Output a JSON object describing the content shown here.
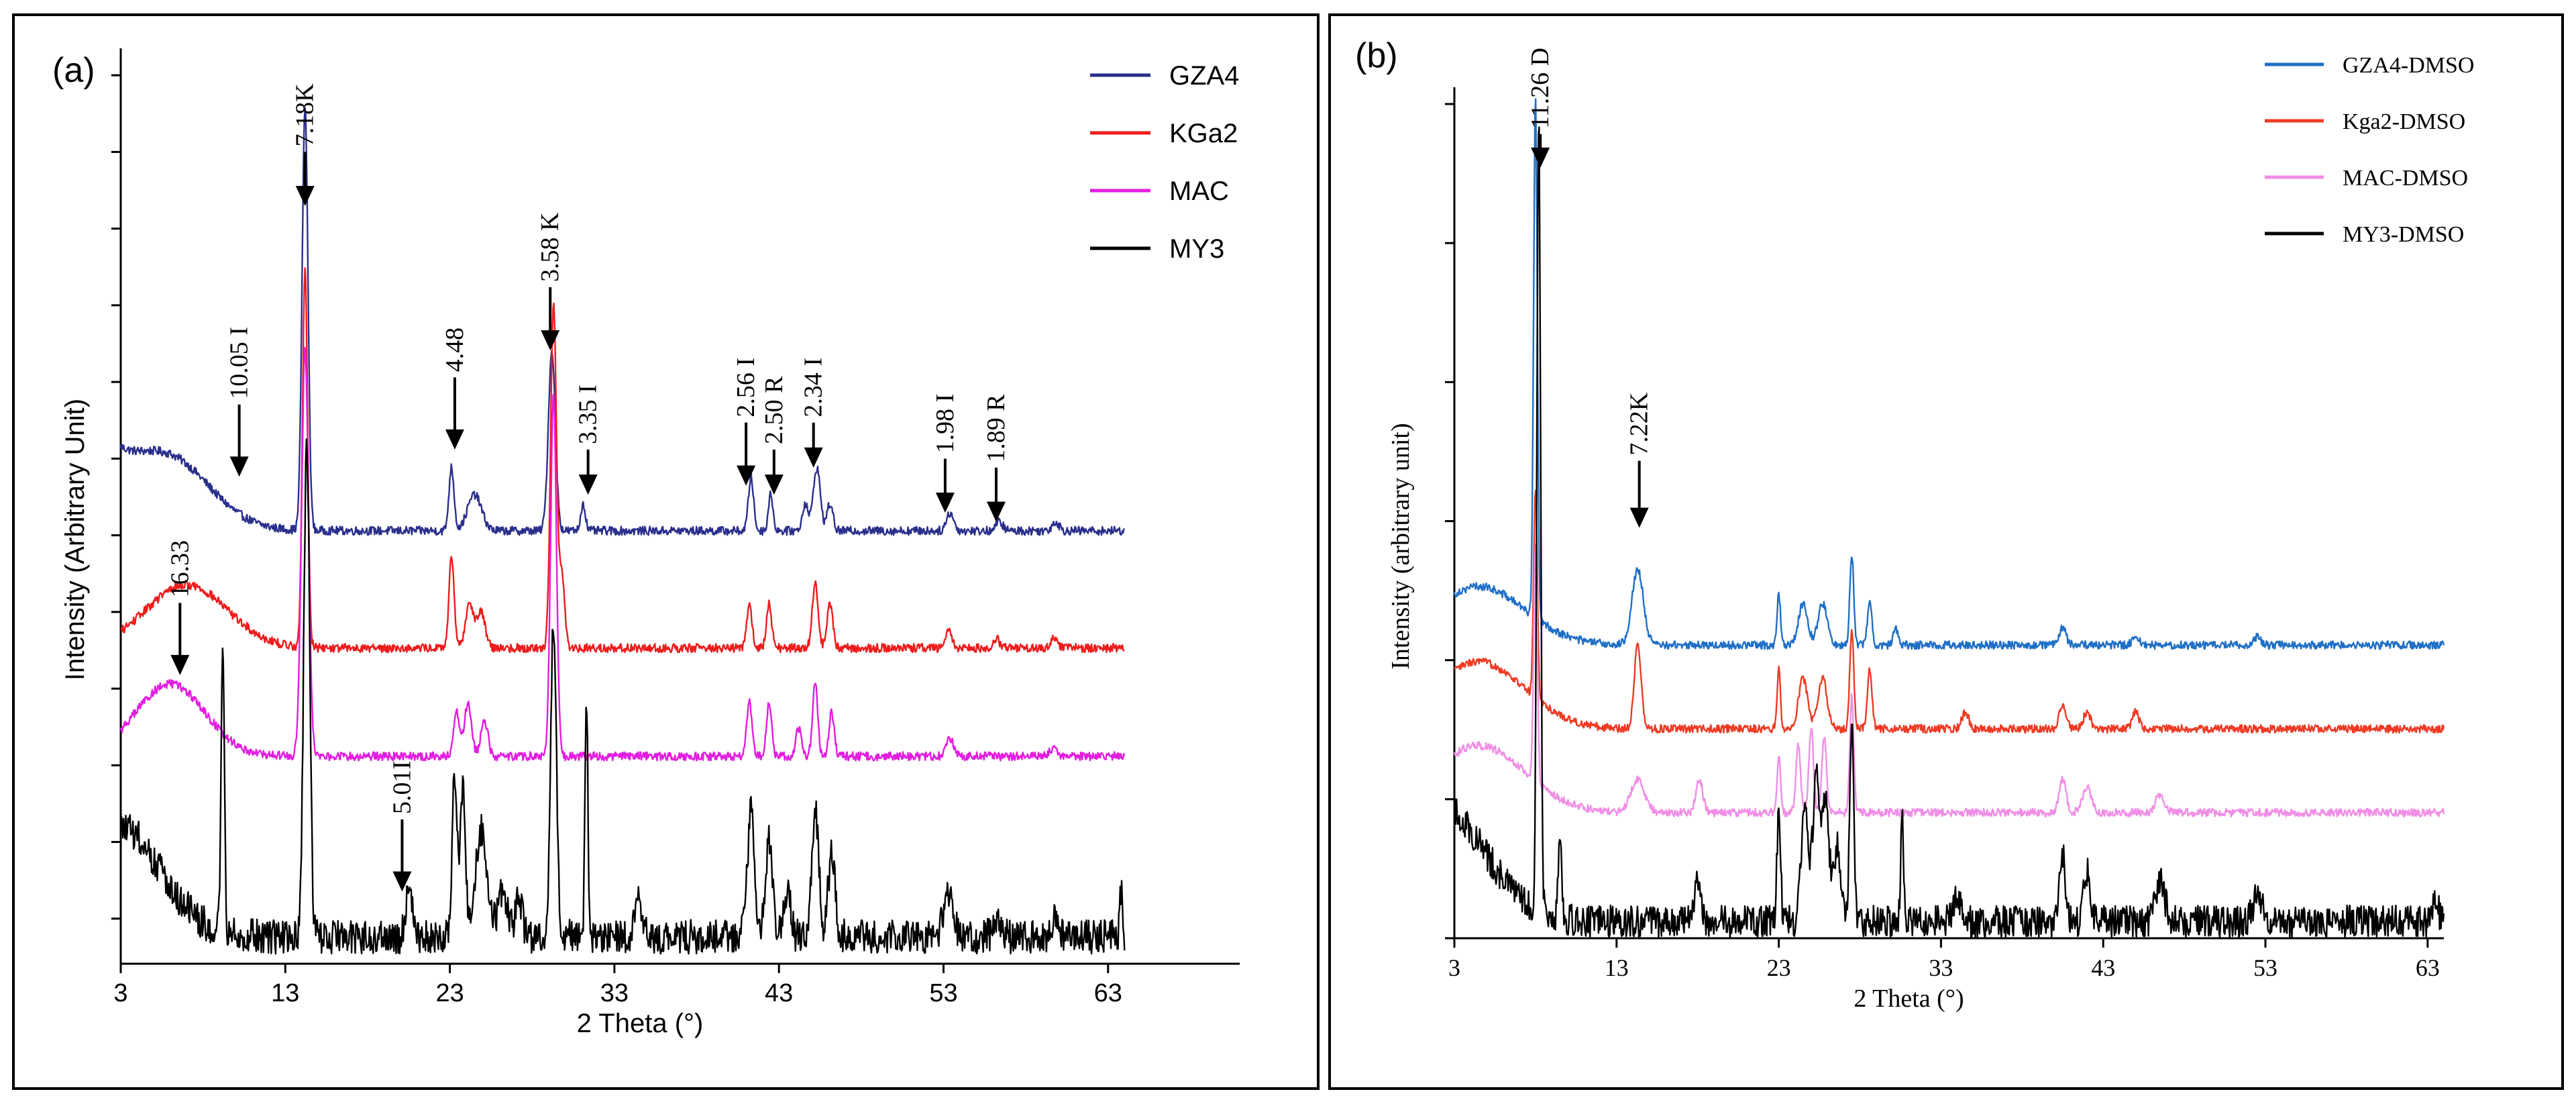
{
  "figure": {
    "panels": [
      "a",
      "b"
    ]
  },
  "chart_data": [
    {
      "panel_label": "(a)",
      "type": "line",
      "title": "",
      "xlabel": "2 Theta (°)",
      "ylabel": "Intensity (Arbitrary Unit)",
      "xlim": [
        3,
        71
      ],
      "x_ticks": [
        "3",
        "13",
        "23",
        "33",
        "43",
        "53",
        "63"
      ],
      "x_tick_values": [
        3,
        13,
        23,
        33,
        43,
        53,
        63
      ],
      "ylim": [
        0,
        100
      ],
      "y_tick_values": [
        5,
        13.5,
        22,
        30.5,
        39,
        47.5,
        56,
        64.5,
        73,
        81.5,
        90,
        98.5
      ],
      "colors": {
        "GZA4": "#2a2f8c",
        "KGa2": "#ee1c1c",
        "MAC": "#e31ce0",
        "MY3": "#000000"
      },
      "legend": {
        "position": "top-right",
        "entries": [
          "GZA4",
          "KGa2",
          "MAC",
          "MY3"
        ]
      },
      "series": [
        {
          "name": "GZA4",
          "baseline": 48,
          "hump": {
            "center": 6,
            "width": 3.5,
            "height": 7,
            "decay": 6
          },
          "peaks": [
            [
              14.2,
              47,
              0.25
            ],
            [
              23.1,
              7,
              0.22
            ],
            [
              24.5,
              4,
              0.6
            ],
            [
              29.2,
              20,
              0.3
            ],
            [
              31.1,
              3,
              0.2
            ],
            [
              41.3,
              6,
              0.22
            ],
            [
              42.5,
              4,
              0.2
            ],
            [
              44.6,
              3,
              0.25
            ],
            [
              45.3,
              7,
              0.3
            ],
            [
              46.1,
              3,
              0.25
            ],
            [
              53.4,
              2,
              0.3
            ],
            [
              56.4,
              1,
              0.3
            ],
            [
              59.8,
              1,
              0.3
            ]
          ]
        },
        {
          "name": "KGa2",
          "baseline": 35,
          "hump": {
            "center": 7,
            "width": 3.5,
            "height": 7,
            "decay": 0
          },
          "peaks": [
            [
              14.2,
              42,
              0.22
            ],
            [
              23.1,
              10,
              0.22
            ],
            [
              24.2,
              5,
              0.35
            ],
            [
              24.9,
              4,
              0.35
            ],
            [
              29.3,
              38,
              0.25
            ],
            [
              29.8,
              8,
              0.25
            ],
            [
              41.2,
              5,
              0.22
            ],
            [
              42.4,
              5,
              0.22
            ],
            [
              45.2,
              7,
              0.25
            ],
            [
              46.1,
              5,
              0.25
            ],
            [
              53.3,
              2,
              0.3
            ],
            [
              56.2,
              1,
              0.3
            ],
            [
              59.7,
              1,
              0.3
            ]
          ]
        },
        {
          "name": "MAC",
          "baseline": 23,
          "hump": {
            "center": 6,
            "width": 3,
            "height": 8,
            "decay": 0
          },
          "peaks": [
            [
              14.2,
              45,
              0.3
            ],
            [
              23.4,
              5,
              0.25
            ],
            [
              24.1,
              6,
              0.3
            ],
            [
              25.1,
              4,
              0.3
            ],
            [
              29.3,
              40,
              0.25
            ],
            [
              41.2,
              6,
              0.22
            ],
            [
              42.4,
              6,
              0.22
            ],
            [
              44.2,
              3,
              0.25
            ],
            [
              45.2,
              8,
              0.22
            ],
            [
              46.2,
              5,
              0.22
            ],
            [
              53.4,
              2,
              0.3
            ],
            [
              59.7,
              1,
              0.3
            ]
          ]
        },
        {
          "name": "MY3",
          "baseline": 3,
          "hump": {
            "center": 3,
            "width": 3.5,
            "height": 12,
            "decay": 0
          },
          "peaks": [
            [
              9.2,
              30,
              0.14
            ],
            [
              14.3,
              55,
              0.25
            ],
            [
              20.5,
              6,
              0.25
            ],
            [
              23.3,
              18,
              0.22
            ],
            [
              23.8,
              16,
              0.22
            ],
            [
              24.9,
              12,
              0.5
            ],
            [
              26.2,
              5,
              0.4
            ],
            [
              27.2,
              4,
              0.3
            ],
            [
              29.3,
              35,
              0.25
            ],
            [
              31.3,
              27,
              0.12
            ],
            [
              34.5,
              4,
              0.3
            ],
            [
              41.3,
              14,
              0.3
            ],
            [
              42.4,
              11,
              0.3
            ],
            [
              43.5,
              5,
              0.3
            ],
            [
              45.2,
              14,
              0.3
            ],
            [
              46.2,
              9,
              0.3
            ],
            [
              53.3,
              5,
              0.4
            ],
            [
              56.2,
              2,
              0.3
            ],
            [
              59.8,
              2,
              0.3
            ],
            [
              63.8,
              5,
              0.12
            ]
          ]
        }
      ],
      "annotations": [
        {
          "text": "7.18K",
          "x": 14.2,
          "tail": 90,
          "head": 84,
          "rotated": true
        },
        {
          "text": "10.05 I",
          "x": 10.2,
          "tail": 62,
          "head": 54,
          "rotated": true
        },
        {
          "text": "16.33",
          "x": 6.6,
          "tail": 40,
          "head": 32,
          "rotated": true
        },
        {
          "text": "4.48",
          "x": 23.3,
          "tail": 65,
          "head": 57,
          "rotated": true
        },
        {
          "text": "5.01I",
          "x": 20.1,
          "tail": 16,
          "head": 8,
          "rotated": true
        },
        {
          "text": "3.58 K",
          "x": 29.1,
          "tail": 75,
          "head": 68,
          "rotated": true
        },
        {
          "text": "3.35 I",
          "x": 31.4,
          "tail": 57,
          "head": 52,
          "rotated": true
        },
        {
          "text": "2.56 I",
          "x": 41.0,
          "tail": 60,
          "head": 53,
          "rotated": true
        },
        {
          "text": "2.50 R",
          "x": 42.7,
          "tail": 57,
          "head": 52,
          "rotated": true
        },
        {
          "text": "2.34 I",
          "x": 45.1,
          "tail": 60,
          "head": 55,
          "rotated": true
        },
        {
          "text": "1.98 I",
          "x": 53.1,
          "tail": 56,
          "head": 50,
          "rotated": true
        },
        {
          "text": "1.89 R",
          "x": 56.2,
          "tail": 55,
          "head": 49,
          "rotated": true
        }
      ]
    },
    {
      "panel_label": "(b)",
      "type": "line",
      "title": "",
      "xlabel": "2 Theta (°)",
      "ylabel": "Intensity (arbitrary unit)",
      "xlim": [
        3,
        64
      ],
      "x_ticks": [
        "3",
        "13",
        "23",
        "33",
        "43",
        "53",
        "63"
      ],
      "x_tick_values": [
        3,
        13,
        23,
        33,
        43,
        53,
        63
      ],
      "ylim": [
        0,
        100
      ],
      "y_tick_values": [
        0,
        16.6,
        33.2,
        49.8,
        66.4,
        83,
        99.6
      ],
      "colors": {
        "GZA4-DMSO": "#1f6fc7",
        "Kga2-DMSO": "#ee3a24",
        "MAC-DMSO": "#f08ee6",
        "MY3-DMSO": "#000000"
      },
      "legend": {
        "position": "top-right",
        "entries": [
          "GZA4-DMSO",
          "Kga2-DMSO",
          "MAC-DMSO",
          "MY3-DMSO"
        ]
      },
      "series": [
        {
          "name": "GZA4-DMSO",
          "baseline": 35,
          "hump": {
            "center": 4.5,
            "width": 4,
            "height": 7,
            "decay": 0
          },
          "peaks": [
            [
              8.0,
              62,
              0.16
            ],
            [
              14.3,
              9,
              0.5
            ],
            [
              23.0,
              6,
              0.15
            ],
            [
              24.5,
              5,
              0.4
            ],
            [
              25.7,
              5,
              0.4
            ],
            [
              27.5,
              11,
              0.17
            ],
            [
              28.6,
              5,
              0.2
            ],
            [
              30.2,
              2,
              0.2
            ],
            [
              40.5,
              2,
              0.3
            ],
            [
              45.0,
              1,
              0.3
            ],
            [
              52.5,
              1,
              0.3
            ]
          ]
        },
        {
          "name": "Kga2-DMSO",
          "baseline": 25,
          "hump": {
            "center": 4.5,
            "width": 4,
            "height": 8,
            "decay": 0
          },
          "peaks": [
            [
              8.0,
              25,
              0.16
            ],
            [
              14.3,
              10,
              0.3
            ],
            [
              23.0,
              7,
              0.15
            ],
            [
              24.5,
              6,
              0.4
            ],
            [
              25.7,
              6,
              0.4
            ],
            [
              27.5,
              12,
              0.17
            ],
            [
              28.6,
              7,
              0.2
            ],
            [
              34.5,
              2,
              0.3
            ],
            [
              40.5,
              3,
              0.3
            ],
            [
              42.0,
              2,
              0.3
            ],
            [
              45.0,
              2,
              0.3
            ]
          ]
        },
        {
          "name": "MAC-DMSO",
          "baseline": 15,
          "hump": {
            "center": 4.5,
            "width": 4,
            "height": 8,
            "decay": 0
          },
          "peaks": [
            [
              8.0,
              28,
              0.16
            ],
            [
              14.3,
              4,
              0.6
            ],
            [
              18.1,
              4,
              0.3
            ],
            [
              23.0,
              7,
              0.15
            ],
            [
              24.2,
              8,
              0.2
            ],
            [
              25.0,
              10,
              0.2
            ],
            [
              25.8,
              9,
              0.2
            ],
            [
              27.5,
              14,
              0.17
            ],
            [
              40.5,
              4,
              0.3
            ],
            [
              42.0,
              3,
              0.4
            ],
            [
              46.5,
              2,
              0.4
            ]
          ]
        },
        {
          "name": "MY3-DMSO",
          "baseline": 2,
          "hump": {
            "center": 2,
            "width": 4,
            "height": 14,
            "decay": 0
          },
          "peaks": [
            [
              8.2,
              95,
              0.16
            ],
            [
              9.5,
              10,
              0.15
            ],
            [
              18.0,
              5,
              0.3
            ],
            [
              23.0,
              14,
              0.15
            ],
            [
              24.6,
              13,
              0.3
            ],
            [
              25.3,
              17,
              0.3
            ],
            [
              25.9,
              14,
              0.3
            ],
            [
              26.6,
              9,
              0.3
            ],
            [
              27.5,
              25,
              0.17
            ],
            [
              30.6,
              13,
              0.12
            ],
            [
              34.0,
              3,
              0.4
            ],
            [
              40.5,
              8,
              0.25
            ],
            [
              42.0,
              6,
              0.3
            ],
            [
              46.5,
              5,
              0.4
            ],
            [
              52.5,
              3,
              0.4
            ],
            [
              63.5,
              3,
              0.2
            ]
          ]
        }
      ],
      "annotations": [
        {
          "text": "11.26 D",
          "x": 8.3,
          "tail": 96,
          "head": 92,
          "rotated": true
        },
        {
          "text": "7.22K",
          "x": 14.4,
          "tail": 57,
          "head": 49,
          "rotated": true
        }
      ]
    }
  ]
}
